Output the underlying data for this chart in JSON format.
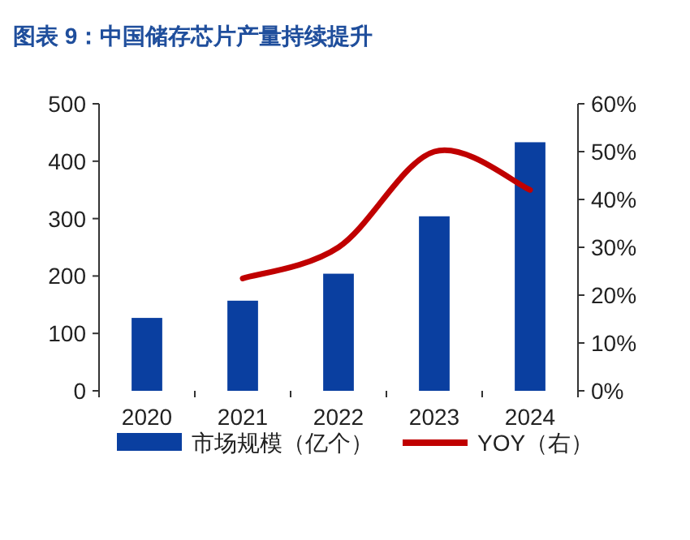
{
  "chart_data": {
    "type": "bar",
    "title": "图表 9：中国储存芯片产量持续提升",
    "categories": [
      "2020",
      "2021",
      "2022",
      "2023",
      "2024"
    ],
    "series": [
      {
        "name": "市场规模（亿个）",
        "color": "#0a3fa0",
        "values": [
          127,
          157,
          204,
          304,
          433
        ]
      },
      {
        "name": "YOY（右）",
        "type": "line",
        "axis": "y2",
        "color": "#c00000",
        "values": [
          null,
          23.5,
          30,
          50,
          42
        ]
      }
    ],
    "ylim": [
      0,
      500
    ],
    "yticks": [
      0,
      100,
      200,
      300,
      400,
      500
    ],
    "y2lim": [
      0,
      60
    ],
    "y2ticks": [
      {
        "value": 0,
        "label": "0%"
      },
      {
        "value": 10,
        "label": "10%"
      },
      {
        "value": 20,
        "label": "20%"
      },
      {
        "value": 30,
        "label": "30%"
      },
      {
        "value": 40,
        "label": "40%"
      },
      {
        "value": 50,
        "label": "50%"
      },
      {
        "value": 60,
        "label": "60%"
      }
    ],
    "legend": "bottom",
    "grid": false,
    "marker": "none",
    "line_style": "solid"
  }
}
